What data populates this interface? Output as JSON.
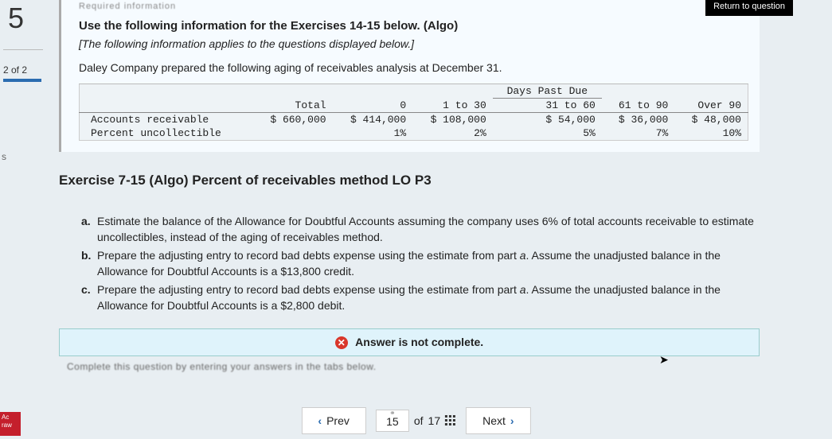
{
  "left": {
    "question_number": "5",
    "part_label": "2 of 2",
    "s_glyph": "s"
  },
  "info": {
    "return_label": "Return to question",
    "cutoff_text": "Required information",
    "title": "Use the following information for the Exercises 14-15 below. (Algo)",
    "subtitle": "[The following information applies to the questions displayed below.]",
    "description": "Daley Company prepared the following aging of receivables analysis at December 31."
  },
  "table": {
    "span_header": "Days Past Due",
    "columns": [
      "",
      "Total",
      "0",
      "1 to 30",
      "31 to 60",
      "61 to 90",
      "Over 90"
    ],
    "rows": [
      {
        "label": "Accounts receivable",
        "values": [
          "$ 660,000",
          "$ 414,000",
          "$ 108,000",
          "$ 54,000",
          "$ 36,000",
          "$ 48,000"
        ]
      },
      {
        "label": "Percent uncollectible",
        "values": [
          "",
          "1%",
          "2%",
          "5%",
          "7%",
          "10%"
        ]
      }
    ],
    "colors": {
      "background": "#eef3f6",
      "border": "#cccccc",
      "grid": "#bbbbbb"
    }
  },
  "exercise": {
    "title": "Exercise 7-15 (Algo) Percent of receivables method LO P3",
    "items": [
      {
        "marker": "a.",
        "text": "Estimate the balance of the Allowance for Doubtful Accounts assuming the company uses 6% of total accounts receivable to estimate uncollectibles, instead of the aging of receivables method."
      },
      {
        "marker": "b.",
        "html": "Prepare the adjusting entry to record bad debts expense using the estimate from part <i>a</i>. Assume the unadjusted balance in the Allowance for Doubtful Accounts is a $13,800 credit."
      },
      {
        "marker": "c.",
        "html": "Prepare the adjusting entry to record bad debts expense using the estimate from part <i>a</i>. Assume the unadjusted balance in the Allowance for Doubtful Accounts is a $2,800 debit."
      }
    ]
  },
  "banner": {
    "text": "Answer is not complete.",
    "icon_glyph": "✕",
    "colors": {
      "background": "#dff3fb",
      "border": "#9cc",
      "icon_bg": "#d9372b"
    }
  },
  "blur_hint": "Complete this question by entering your answers in the tabs below.",
  "pager": {
    "prev": "Prev",
    "next": "Next",
    "current": "15",
    "of_label": "of",
    "total": "17"
  },
  "badge": {
    "line1": "Ac",
    "line2": "raw"
  }
}
